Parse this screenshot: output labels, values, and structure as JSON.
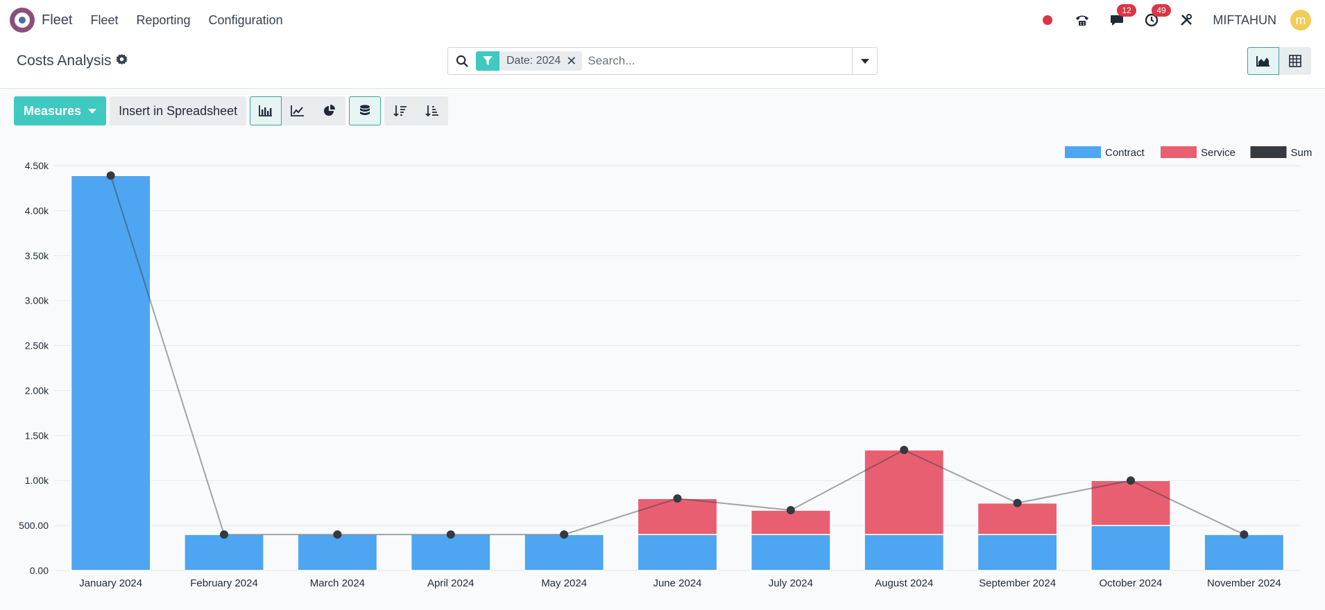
{
  "navbar": {
    "app_name": "Fleet",
    "menu": [
      "Fleet",
      "Reporting",
      "Configuration"
    ],
    "messages_count": "12",
    "activities_count": "49",
    "user_name": "MIFTAHUN",
    "avatar_letter": "m"
  },
  "control_panel": {
    "title": "Costs Analysis",
    "facet_value": "Date: 2024",
    "search_placeholder": "Search..."
  },
  "toolbar": {
    "measures_label": "Measures",
    "insert_label": "Insert in Spreadsheet"
  },
  "colors": {
    "accent": "#3fc9c0",
    "contract": "#4ea5f1",
    "service": "#e95f72",
    "sum": "#343a40"
  },
  "chart_data": {
    "type": "bar",
    "stacked": true,
    "categories": [
      "January 2024",
      "February 2024",
      "March 2024",
      "April 2024",
      "May 2024",
      "June 2024",
      "July 2024",
      "August 2024",
      "September 2024",
      "October 2024",
      "November 2024"
    ],
    "series": [
      {
        "name": "Contract",
        "type": "bar",
        "color": "#4ea5f1",
        "values": [
          4390,
          400,
          400,
          400,
          400,
          400,
          400,
          400,
          400,
          500,
          400
        ]
      },
      {
        "name": "Service",
        "type": "bar",
        "color": "#e95f72",
        "values": [
          0,
          0,
          0,
          0,
          0,
          400,
          270,
          940,
          350,
          500,
          0
        ]
      },
      {
        "name": "Sum",
        "type": "line",
        "color": "#343a40",
        "values": [
          4390,
          400,
          400,
          400,
          400,
          800,
          670,
          1340,
          750,
          1000,
          400
        ]
      }
    ],
    "y_ticks": [
      "0.00",
      "500.00",
      "1.00k",
      "1.50k",
      "2.00k",
      "2.50k",
      "3.00k",
      "3.50k",
      "4.00k",
      "4.50k"
    ],
    "ylim": [
      0,
      4500
    ],
    "grid": true,
    "legend_position": "top-right"
  }
}
